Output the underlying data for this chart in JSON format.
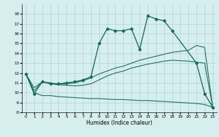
{
  "title": "",
  "xlabel": "Humidex (Indice chaleur)",
  "xlim": [
    -0.5,
    23.5
  ],
  "ylim": [
    8,
    19
  ],
  "xticks": [
    0,
    1,
    2,
    3,
    4,
    5,
    6,
    7,
    8,
    9,
    10,
    11,
    12,
    13,
    14,
    15,
    16,
    17,
    18,
    19,
    20,
    21,
    22,
    23
  ],
  "yticks": [
    8,
    9,
    10,
    11,
    12,
    13,
    14,
    15,
    16,
    17,
    18
  ],
  "bg_color": "#d6eeee",
  "grid_color": "#b0d0d0",
  "line_color": "#1a6b5a",
  "lines": [
    {
      "x": [
        0,
        1,
        2,
        3,
        4,
        5,
        6,
        7,
        8,
        9,
        10,
        11,
        12,
        13,
        14,
        15,
        16,
        17,
        18,
        21,
        22,
        23
      ],
      "y": [
        11.9,
        9.9,
        11.1,
        10.9,
        10.9,
        11.0,
        11.1,
        11.3,
        11.6,
        15.0,
        16.5,
        16.3,
        16.3,
        16.5,
        14.4,
        17.8,
        17.5,
        17.3,
        16.3,
        13.0,
        9.9,
        8.5
      ],
      "marker": "D",
      "markersize": 2.0,
      "linewidth": 1.0
    },
    {
      "x": [
        0,
        1,
        2,
        3,
        4,
        5,
        6,
        7,
        8,
        9,
        10,
        11,
        12,
        13,
        14,
        15,
        16,
        17,
        18,
        19,
        20,
        21,
        22,
        23
      ],
      "y": [
        11.9,
        10.5,
        11.1,
        11.0,
        10.85,
        10.9,
        11.0,
        11.2,
        11.5,
        11.9,
        12.2,
        12.5,
        12.7,
        13.0,
        13.3,
        13.5,
        13.7,
        13.9,
        14.1,
        14.2,
        14.3,
        14.8,
        14.6,
        8.5
      ],
      "marker": null,
      "linewidth": 0.8
    },
    {
      "x": [
        0,
        1,
        2,
        3,
        4,
        5,
        6,
        7,
        8,
        9,
        10,
        11,
        12,
        13,
        14,
        15,
        16,
        17,
        18,
        19,
        20,
        21,
        22,
        23
      ],
      "y": [
        11.9,
        10.0,
        9.7,
        9.7,
        9.6,
        9.55,
        9.5,
        9.45,
        9.4,
        9.4,
        9.35,
        9.3,
        9.3,
        9.25,
        9.2,
        9.2,
        9.15,
        9.1,
        9.05,
        9.0,
        8.95,
        8.9,
        8.8,
        8.5
      ],
      "marker": null,
      "linewidth": 0.8
    },
    {
      "x": [
        0,
        1,
        2,
        3,
        4,
        5,
        6,
        7,
        8,
        9,
        10,
        11,
        12,
        13,
        14,
        15,
        16,
        17,
        18,
        19,
        20,
        21,
        22,
        23
      ],
      "y": [
        11.9,
        10.2,
        11.1,
        10.9,
        10.8,
        10.75,
        10.7,
        10.75,
        10.9,
        11.3,
        11.7,
        12.0,
        12.2,
        12.5,
        12.7,
        12.9,
        13.05,
        13.2,
        13.3,
        13.25,
        13.2,
        13.1,
        13.0,
        8.5
      ],
      "marker": null,
      "linewidth": 0.8
    }
  ]
}
